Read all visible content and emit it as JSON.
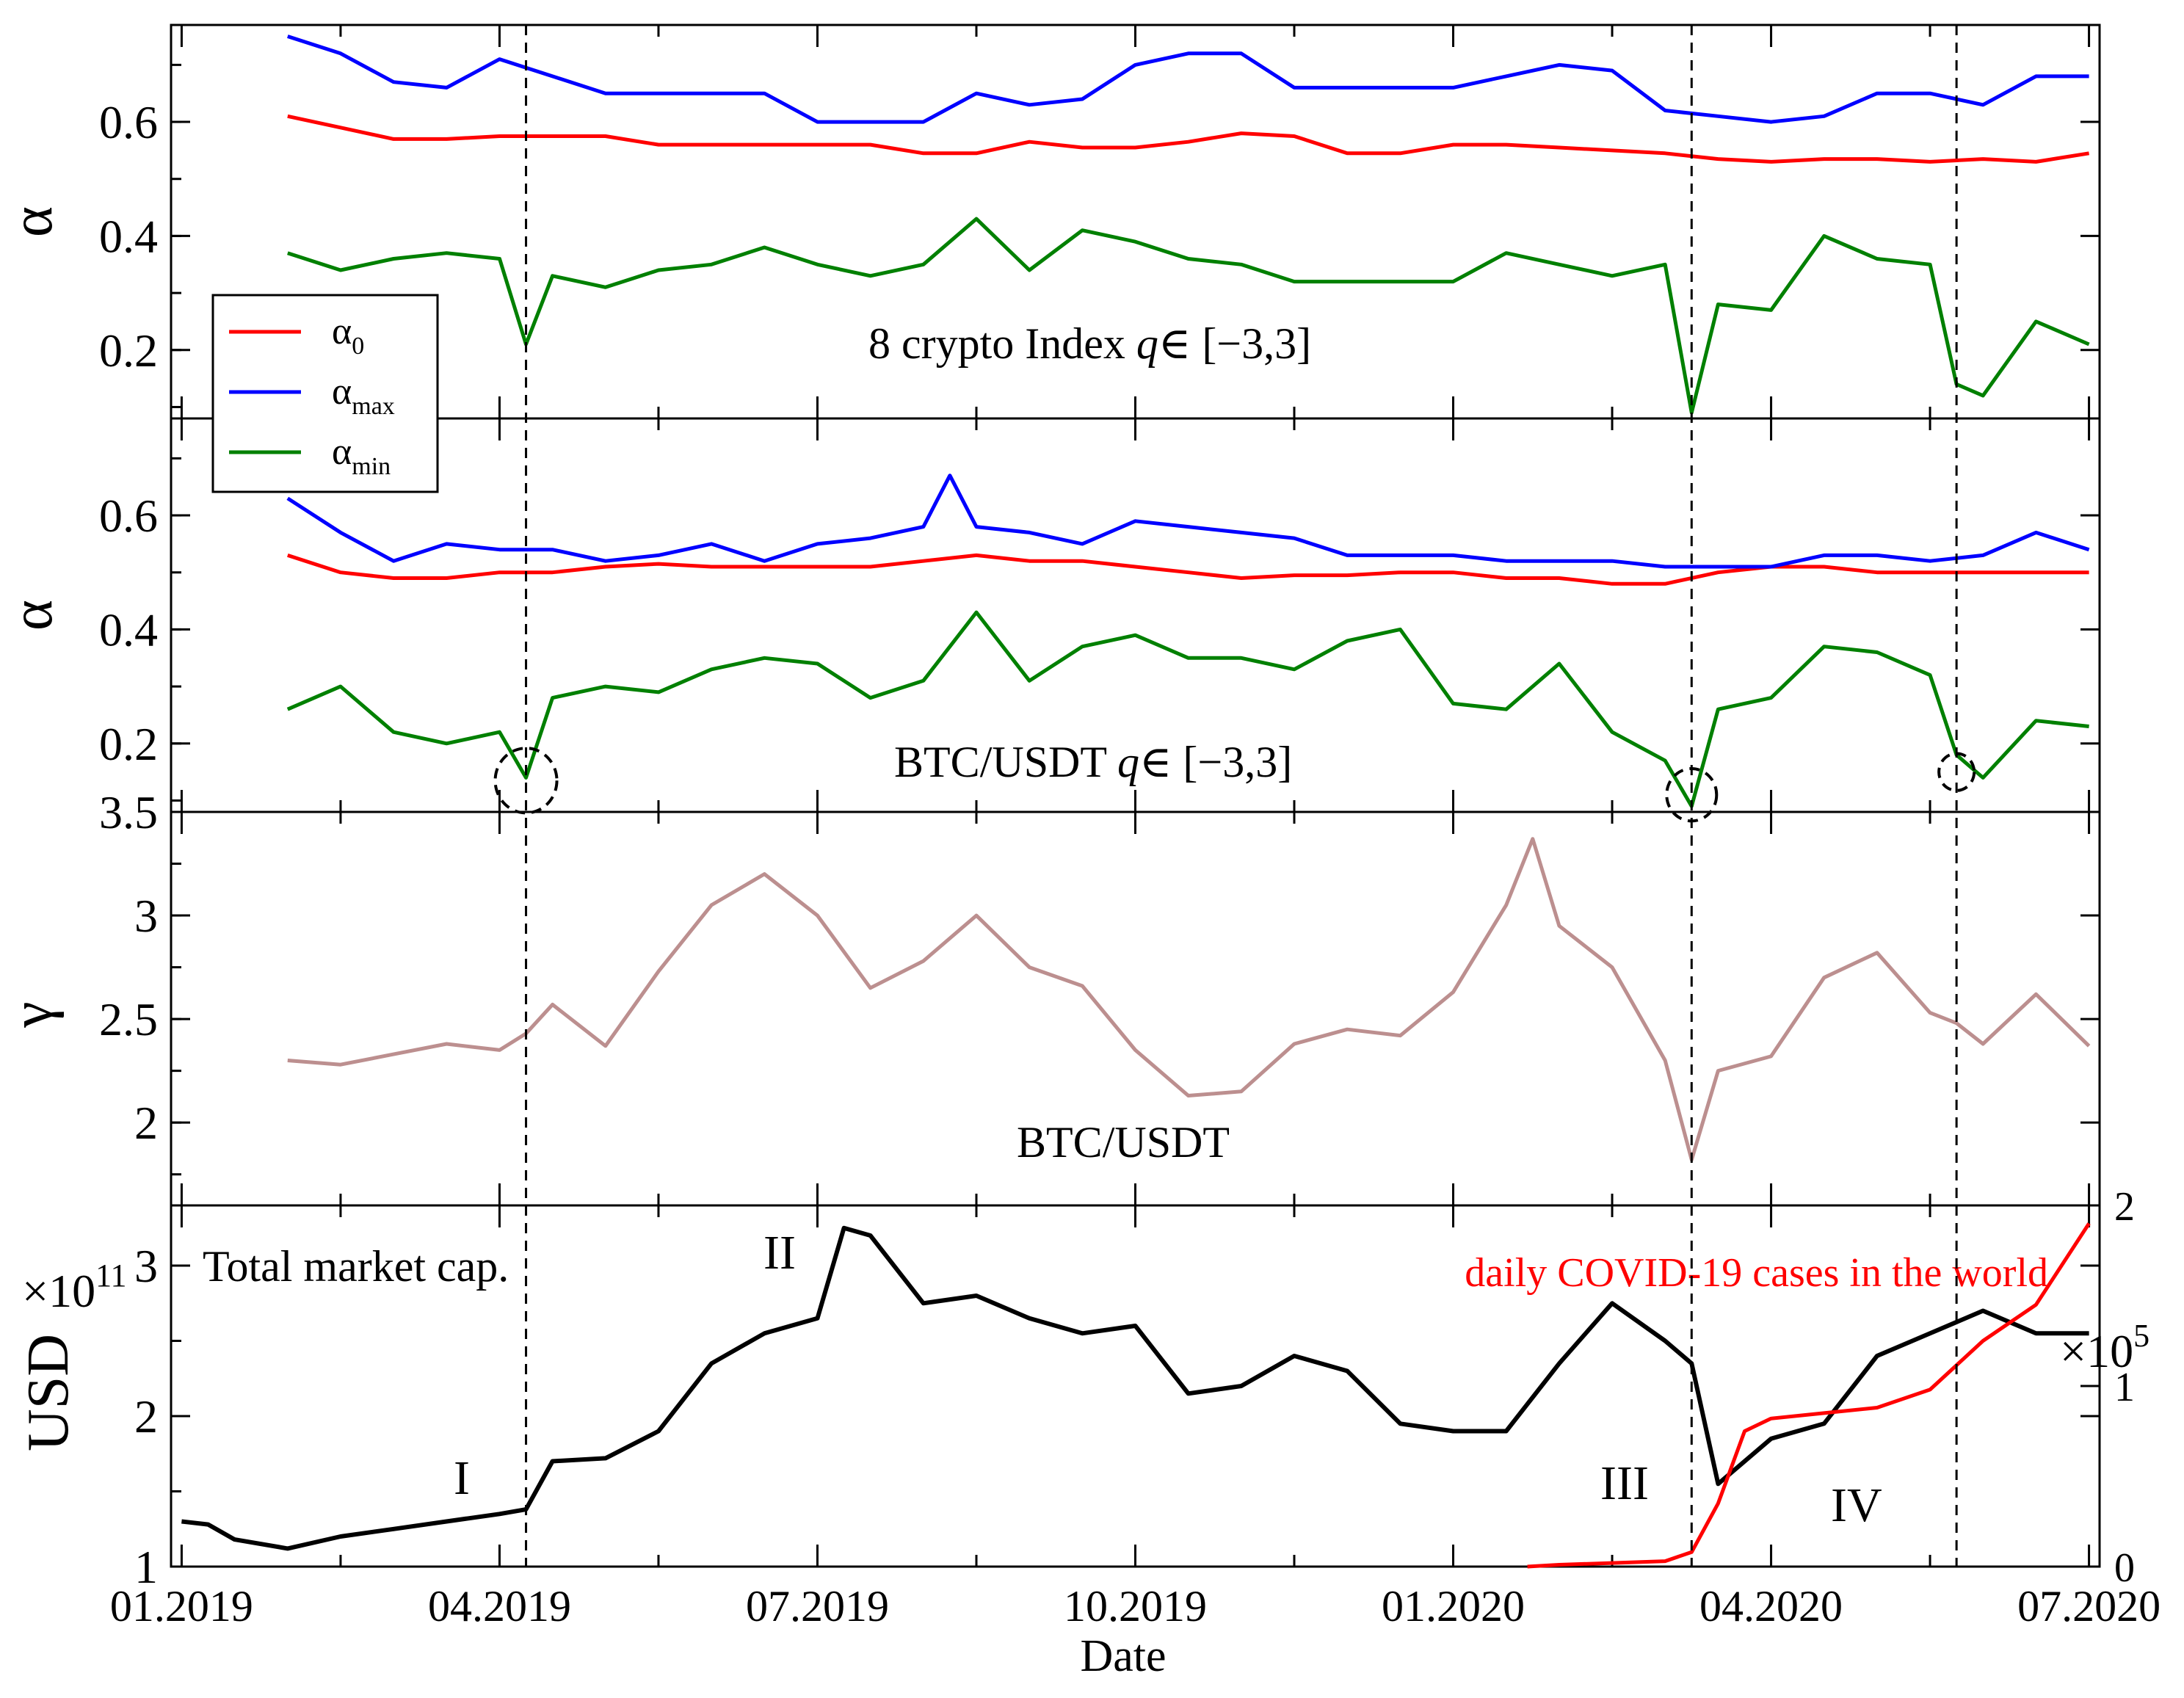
{
  "colors": {
    "alpha0": "#ff0000",
    "alphamax": "#0000ff",
    "alphamin": "#008000",
    "gamma": "#bc8f8f",
    "market": "#000000",
    "covid": "#ff0000",
    "axis": "#000000"
  },
  "chart_data": [
    {
      "type": "line",
      "panel": "crypto-index-alpha",
      "title": "8 crypto Index q∈ [−3,3]",
      "title_main": "8 crypto Index ",
      "title_q": "q",
      "title_range": "∈ [−3,3]",
      "ylabel": "α",
      "ylim": [
        0.08,
        0.77
      ],
      "ticks": [
        0.2,
        0.4,
        0.6
      ],
      "tick_labels": [
        "0.2",
        "0.4",
        "0.6"
      ],
      "x_unit": "months since 2019-01-01",
      "legend": {
        "placement": "left",
        "entries": [
          {
            "series": "alpha0",
            "base": "α",
            "sub": "0"
          },
          {
            "series": "alphamax",
            "base": "α",
            "sub": "max"
          },
          {
            "series": "alphamin",
            "base": "α",
            "sub": "min"
          }
        ]
      },
      "series": [
        {
          "name": "alpha0",
          "x": [
            1.0,
            1.5,
            2.0,
            2.5,
            3.0,
            3.5,
            4.0,
            4.5,
            5.0,
            5.5,
            6.0,
            6.5,
            7.0,
            7.5,
            8.0,
            8.5,
            9.0,
            9.5,
            10.0,
            10.5,
            11.0,
            11.5,
            12.0,
            12.5,
            13.0,
            13.5,
            14.0,
            14.5,
            15.0,
            15.5,
            16.0,
            16.5,
            17.0,
            17.5,
            18.0
          ],
          "values": [
            0.61,
            0.59,
            0.57,
            0.57,
            0.575,
            0.575,
            0.575,
            0.56,
            0.56,
            0.56,
            0.56,
            0.56,
            0.545,
            0.545,
            0.565,
            0.555,
            0.555,
            0.565,
            0.58,
            0.575,
            0.545,
            0.545,
            0.56,
            0.56,
            0.555,
            0.55,
            0.545,
            0.535,
            0.53,
            0.535,
            0.535,
            0.53,
            0.535,
            0.53,
            0.545
          ]
        },
        {
          "name": "alphamax",
          "x": [
            1.0,
            1.5,
            2.0,
            2.5,
            3.0,
            3.5,
            4.0,
            4.5,
            5.0,
            5.5,
            6.0,
            6.5,
            7.0,
            7.5,
            8.0,
            8.5,
            9.0,
            9.5,
            10.0,
            10.5,
            11.0,
            11.5,
            12.0,
            12.5,
            13.0,
            13.5,
            14.0,
            14.5,
            15.0,
            15.5,
            16.0,
            16.5,
            17.0,
            17.5,
            18.0
          ],
          "values": [
            0.75,
            0.72,
            0.67,
            0.66,
            0.71,
            0.68,
            0.65,
            0.65,
            0.65,
            0.65,
            0.6,
            0.6,
            0.6,
            0.65,
            0.63,
            0.64,
            0.7,
            0.72,
            0.72,
            0.66,
            0.66,
            0.66,
            0.66,
            0.68,
            0.7,
            0.69,
            0.62,
            0.61,
            0.6,
            0.61,
            0.65,
            0.65,
            0.63,
            0.68,
            0.68
          ]
        },
        {
          "name": "alphamin",
          "x": [
            1.0,
            1.5,
            2.0,
            2.5,
            3.0,
            3.25,
            3.5,
            4.0,
            4.5,
            5.0,
            5.5,
            6.0,
            6.5,
            7.0,
            7.5,
            8.0,
            8.5,
            9.0,
            9.5,
            10.0,
            10.5,
            11.0,
            11.5,
            12.0,
            12.5,
            13.0,
            13.5,
            14.0,
            14.25,
            14.5,
            15.0,
            15.5,
            16.0,
            16.5,
            16.75,
            17.0,
            17.5,
            18.0
          ],
          "values": [
            0.37,
            0.34,
            0.36,
            0.37,
            0.36,
            0.21,
            0.33,
            0.31,
            0.34,
            0.35,
            0.38,
            0.35,
            0.33,
            0.35,
            0.43,
            0.34,
            0.41,
            0.39,
            0.36,
            0.35,
            0.32,
            0.32,
            0.32,
            0.32,
            0.37,
            0.35,
            0.33,
            0.35,
            0.09,
            0.28,
            0.27,
            0.4,
            0.36,
            0.35,
            0.14,
            0.12,
            0.25,
            0.21
          ]
        }
      ]
    },
    {
      "type": "line",
      "panel": "btc-usdt-alpha",
      "title": "BTC/USDT q∈ [−3,3]",
      "title_main": "BTC/USDT ",
      "title_q": "q",
      "title_range": "∈ [−3,3]",
      "ylabel": "α",
      "ylim": [
        0.08,
        0.77
      ],
      "ticks": [
        0.2,
        0.4,
        0.6
      ],
      "tick_labels": [
        "0.2",
        "0.4",
        "0.6"
      ],
      "x_unit": "months since 2019-01-01",
      "series": [
        {
          "name": "alpha0",
          "x": [
            1.0,
            1.5,
            2.0,
            2.5,
            3.0,
            3.5,
            4.0,
            4.5,
            5.0,
            5.5,
            6.0,
            6.5,
            7.0,
            7.5,
            8.0,
            8.5,
            9.0,
            9.5,
            10.0,
            10.5,
            11.0,
            11.5,
            12.0,
            12.5,
            13.0,
            13.5,
            14.0,
            14.5,
            15.0,
            15.5,
            16.0,
            16.5,
            17.0,
            17.5,
            18.0
          ],
          "values": [
            0.53,
            0.5,
            0.49,
            0.49,
            0.5,
            0.5,
            0.51,
            0.515,
            0.51,
            0.51,
            0.51,
            0.51,
            0.52,
            0.53,
            0.52,
            0.52,
            0.51,
            0.5,
            0.49,
            0.495,
            0.495,
            0.5,
            0.5,
            0.49,
            0.49,
            0.48,
            0.48,
            0.5,
            0.51,
            0.51,
            0.5,
            0.5,
            0.5,
            0.5,
            0.5
          ]
        },
        {
          "name": "alphamax",
          "x": [
            1.0,
            1.5,
            2.0,
            2.5,
            3.0,
            3.5,
            4.0,
            4.5,
            5.0,
            5.5,
            6.0,
            6.5,
            7.0,
            7.25,
            7.5,
            8.0,
            8.5,
            9.0,
            9.5,
            10.0,
            10.5,
            11.0,
            11.5,
            12.0,
            12.5,
            13.0,
            13.5,
            14.0,
            14.5,
            15.0,
            15.5,
            16.0,
            16.5,
            17.0,
            17.5,
            18.0
          ],
          "values": [
            0.63,
            0.57,
            0.52,
            0.55,
            0.54,
            0.54,
            0.52,
            0.53,
            0.55,
            0.52,
            0.55,
            0.56,
            0.58,
            0.67,
            0.58,
            0.57,
            0.55,
            0.59,
            0.58,
            0.57,
            0.56,
            0.53,
            0.53,
            0.53,
            0.52,
            0.52,
            0.52,
            0.51,
            0.51,
            0.51,
            0.53,
            0.53,
            0.52,
            0.53,
            0.57,
            0.54
          ]
        },
        {
          "name": "alphamin",
          "x": [
            1.0,
            1.5,
            2.0,
            2.5,
            3.0,
            3.25,
            3.5,
            4.0,
            4.5,
            5.0,
            5.5,
            6.0,
            6.5,
            7.0,
            7.5,
            8.0,
            8.5,
            9.0,
            9.5,
            10.0,
            10.5,
            11.0,
            11.5,
            12.0,
            12.5,
            13.0,
            13.5,
            14.0,
            14.25,
            14.5,
            15.0,
            15.5,
            16.0,
            16.5,
            16.75,
            17.0,
            17.5,
            18.0
          ],
          "values": [
            0.26,
            0.3,
            0.22,
            0.2,
            0.22,
            0.14,
            0.28,
            0.3,
            0.29,
            0.33,
            0.35,
            0.34,
            0.28,
            0.31,
            0.43,
            0.31,
            0.37,
            0.39,
            0.35,
            0.35,
            0.33,
            0.38,
            0.4,
            0.27,
            0.26,
            0.34,
            0.22,
            0.17,
            0.09,
            0.26,
            0.28,
            0.37,
            0.36,
            0.32,
            0.18,
            0.14,
            0.24,
            0.23
          ]
        }
      ]
    },
    {
      "type": "line",
      "panel": "btc-usdt-gamma",
      "title": "BTC/USDT",
      "ylabel": "γ",
      "ylim": [
        1.6,
        3.5
      ],
      "ticks": [
        2.0,
        2.5,
        3.0,
        3.5
      ],
      "tick_labels": [
        "2",
        "2.5",
        "3",
        "3.5"
      ],
      "x_unit": "months since 2019-01-01",
      "series": [
        {
          "name": "gamma",
          "x": [
            1.0,
            1.5,
            2.0,
            2.5,
            3.0,
            3.25,
            3.5,
            4.0,
            4.5,
            5.0,
            5.5,
            6.0,
            6.5,
            7.0,
            7.5,
            8.0,
            8.5,
            9.0,
            9.5,
            10.0,
            10.5,
            11.0,
            11.5,
            12.0,
            12.5,
            12.75,
            13.0,
            13.5,
            14.0,
            14.25,
            14.5,
            15.0,
            15.5,
            16.0,
            16.5,
            16.75,
            17.0,
            17.5,
            18.0
          ],
          "values": [
            2.3,
            2.28,
            2.33,
            2.38,
            2.35,
            2.43,
            2.57,
            2.37,
            2.73,
            3.05,
            3.2,
            3.0,
            2.65,
            2.78,
            3.0,
            2.75,
            2.66,
            2.35,
            2.13,
            2.15,
            2.38,
            2.45,
            2.42,
            2.63,
            3.05,
            3.37,
            2.95,
            2.75,
            2.3,
            1.82,
            2.25,
            2.32,
            2.7,
            2.82,
            2.53,
            2.48,
            2.38,
            2.62,
            2.37
          ]
        }
      ]
    },
    {
      "type": "line",
      "panel": "market-cap-covid",
      "title": "Total market cap.",
      "ylabel": "USD",
      "y_scale_label": "×10",
      "y_scale_exp": "11",
      "ylim": [
        1.0,
        3.4
      ],
      "ticks": [
        1,
        2,
        3
      ],
      "tick_labels": [
        "1",
        "2",
        "3"
      ],
      "secondary_axis": {
        "series": "covid",
        "ylim": [
          0,
          2
        ],
        "ticks": [
          0,
          1,
          2
        ],
        "tick_labels": [
          "0",
          "1",
          "2"
        ],
        "scale_label": "×10",
        "scale_exp": "5",
        "label": "daily COVID-19 cases in the world"
      },
      "annotations": [
        "I",
        "II",
        "III",
        "IV"
      ],
      "xlabel": "Date",
      "x_ticks": [
        0,
        3,
        6,
        9,
        12,
        15,
        18
      ],
      "x_tick_labels": [
        "01.2019",
        "04.2019",
        "07.2019",
        "10.2019",
        "01.2020",
        "04.2020",
        "07.2020"
      ],
      "xlim": [
        -0.1,
        18.1
      ],
      "series": [
        {
          "name": "market",
          "units": "1e11 USD",
          "x": [
            0.0,
            0.25,
            0.5,
            1.0,
            1.5,
            2.0,
            2.5,
            3.0,
            3.25,
            3.5,
            4.0,
            4.5,
            5.0,
            5.5,
            6.0,
            6.25,
            6.5,
            7.0,
            7.5,
            8.0,
            8.5,
            9.0,
            9.5,
            10.0,
            10.5,
            11.0,
            11.5,
            12.0,
            12.5,
            13.0,
            13.5,
            14.0,
            14.25,
            14.5,
            15.0,
            15.5,
            16.0,
            16.5,
            17.0,
            17.5,
            18.0
          ],
          "values": [
            1.3,
            1.28,
            1.18,
            1.12,
            1.2,
            1.25,
            1.3,
            1.35,
            1.38,
            1.7,
            1.72,
            1.9,
            2.35,
            2.55,
            2.65,
            3.25,
            3.2,
            2.75,
            2.8,
            2.65,
            2.55,
            2.6,
            2.15,
            2.2,
            2.4,
            2.3,
            1.95,
            1.9,
            1.9,
            2.35,
            2.75,
            2.5,
            2.35,
            1.55,
            1.85,
            1.95,
            2.4,
            2.55,
            2.7,
            2.55,
            2.55
          ]
        },
        {
          "name": "covid",
          "units": "1e5 cases",
          "x": [
            12.7,
            13.0,
            13.5,
            14.0,
            14.25,
            14.5,
            14.75,
            15.0,
            15.5,
            16.0,
            16.5,
            17.0,
            17.5,
            18.0
          ],
          "values": [
            0.0,
            0.01,
            0.02,
            0.03,
            0.08,
            0.35,
            0.75,
            0.82,
            0.85,
            0.88,
            0.98,
            1.25,
            1.45,
            1.9
          ]
        }
      ]
    }
  ],
  "vertical_markers": [
    3.25,
    14.25,
    16.75
  ],
  "circle_markers": [
    {
      "panel": 1,
      "x": 3.25,
      "y": 0.135
    },
    {
      "panel": 1,
      "x": 14.25,
      "y": 0.11
    },
    {
      "panel": 1,
      "x": 16.75,
      "y": 0.15
    }
  ]
}
